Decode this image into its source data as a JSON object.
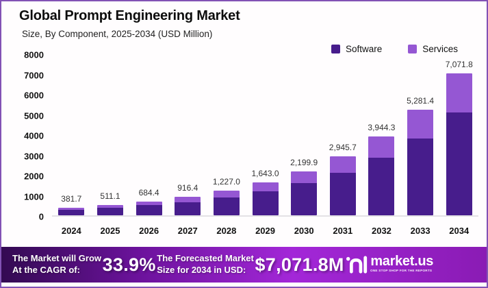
{
  "header": {
    "title": "Global Prompt Engineering Market",
    "subtitle": "Size, By Component, 2025-2034 (USD Million)"
  },
  "chart_data": {
    "type": "bar",
    "stacked": true,
    "title": "Global Prompt Engineering Market Size, By Component, 2025-2034 (USD Million)",
    "categories": [
      "2024",
      "2025",
      "2026",
      "2027",
      "2028",
      "2029",
      "2030",
      "2031",
      "2032",
      "2033",
      "2034"
    ],
    "totals": [
      381.7,
      511.1,
      684.4,
      916.4,
      1227.0,
      1643.0,
      2199.9,
      2945.7,
      3944.3,
      5281.4,
      7071.8
    ],
    "total_labels": [
      "381.7",
      "511.1",
      "684.4",
      "916.4",
      "1,227.0",
      "1,643.0",
      "2,199.9",
      "2,945.7",
      "3,944.3",
      "5,281.4",
      "7,071.8"
    ],
    "series": [
      {
        "name": "Software",
        "color": "#471d8c",
        "values": [
          276.7,
          370.5,
          496.2,
          664.4,
          889.6,
          1191.2,
          1594.9,
          2135.6,
          2859.6,
          3829.0,
          5127.1
        ]
      },
      {
        "name": "Services",
        "color": "#9557d3",
        "values": [
          105.0,
          140.6,
          188.2,
          252.0,
          337.4,
          451.8,
          605.0,
          810.1,
          1084.7,
          1452.4,
          1944.7
        ]
      }
    ],
    "xlabel": "",
    "ylabel": "",
    "ylim": [
      0,
      8000
    ],
    "yticks": [
      0,
      1000,
      2000,
      3000,
      4000,
      5000,
      6000,
      7000,
      8000
    ],
    "grid": false,
    "legend_position": "top-right"
  },
  "banner": {
    "cagr_label_line1": "The Market will Grow",
    "cagr_label_line2": "At the CAGR of:",
    "cagr_value": "33.9%",
    "forecast_label_line1": "The Forecasted Market",
    "forecast_label_line2": "Size for 2034 in USD:",
    "forecast_value": "$7,071.8M",
    "brand_name": "market.us",
    "brand_tagline": "ONE STOP SHOP FOR THE REPORTS"
  },
  "colors": {
    "software": "#471d8c",
    "services": "#9557d3",
    "frame_border": "#8252b5",
    "banner_gradient_start": "#330a52",
    "banner_gradient_mid": "#a327d8",
    "banner_gradient_end": "#8a1bb4",
    "axis_line": "#e4e2e6",
    "value_label": "#333333"
  }
}
